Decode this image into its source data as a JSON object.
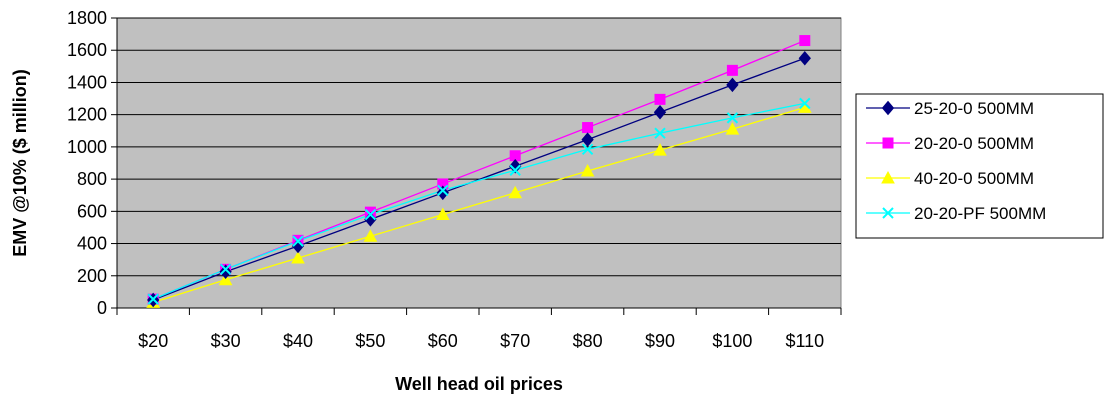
{
  "chart_data": {
    "type": "line",
    "categories": [
      "$20",
      "$30",
      "$40",
      "$50",
      "$60",
      "$70",
      "$80",
      "$90",
      "$100",
      "$110"
    ],
    "xlabel": "Well head oil prices",
    "ylabel": "EMV @10% ($ million)",
    "ylim": [
      0,
      1800
    ],
    "yticks": [
      0,
      200,
      400,
      600,
      800,
      1000,
      1200,
      1400,
      1600,
      1800
    ],
    "grid": true,
    "plot_background": "#c0c0c0",
    "legend_position": "right",
    "series": [
      {
        "name": "25-20-0 500MM",
        "color": "#000080",
        "marker": "diamond",
        "values": [
          50,
          225,
          385,
          550,
          715,
          880,
          1045,
          1215,
          1385,
          1550
        ]
      },
      {
        "name": "20-20-0 500MM",
        "color": "#ff00ff",
        "marker": "square",
        "values": [
          55,
          240,
          420,
          595,
          770,
          945,
          1120,
          1295,
          1475,
          1660
        ]
      },
      {
        "name": "40-20-0 500MM",
        "color": "#ffff00",
        "marker": "triangle",
        "values": [
          35,
          175,
          310,
          445,
          580,
          715,
          850,
          980,
          1110,
          1245
        ]
      },
      {
        "name": "20-20-PF 500MM",
        "color": "#00ffff",
        "marker": "x",
        "values": [
          55,
          240,
          415,
          580,
          730,
          855,
          985,
          1085,
          1180,
          1270
        ]
      }
    ]
  }
}
